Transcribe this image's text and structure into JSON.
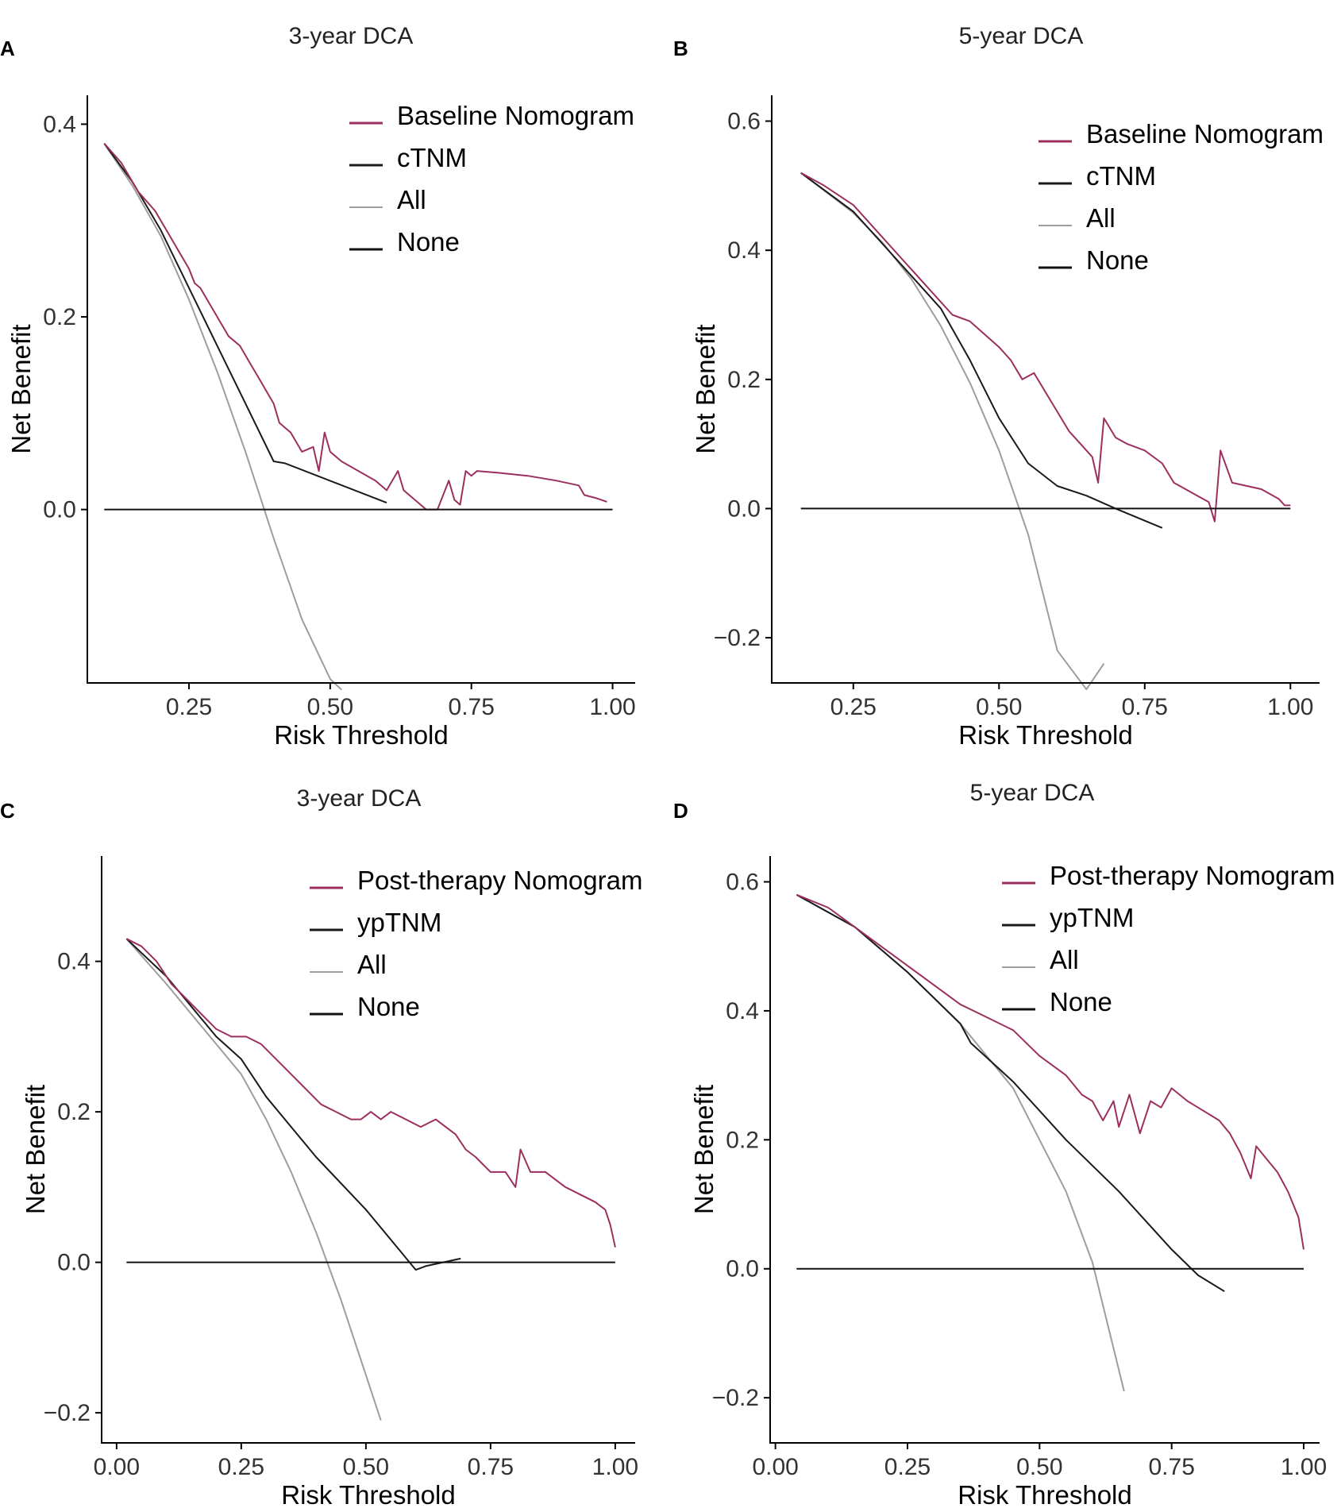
{
  "colors": {
    "nomogram": "#9c2f5f",
    "tnm": "#1a1a1a",
    "all": "#a09c9c",
    "none": "#111111",
    "axis": "#000000"
  },
  "chart_data": [
    {
      "letter": "A",
      "type": "line",
      "title": "3-year DCA",
      "xlabel": "Risk Threshold",
      "ylabel": "Net Benefit",
      "xlim": [
        0.07,
        1.04
      ],
      "ylim": [
        -0.18,
        0.43
      ],
      "xticks": [
        0.25,
        0.5,
        0.75,
        1.0
      ],
      "xtick_labels": [
        "0.25",
        "0.50",
        "0.75",
        "1.00"
      ],
      "yticks": [
        0.0,
        0.2,
        0.4
      ],
      "ytick_labels": [
        "0.0",
        "0.2",
        "0.4"
      ],
      "legend_position": "top-right",
      "series": [
        {
          "name": "Baseline Nomogram",
          "role": "nomogram",
          "x": [
            0.1,
            0.13,
            0.16,
            0.19,
            0.21,
            0.23,
            0.25,
            0.26,
            0.27,
            0.28,
            0.3,
            0.32,
            0.34,
            0.36,
            0.37,
            0.38,
            0.39,
            0.4,
            0.41,
            0.43,
            0.45,
            0.47,
            0.48,
            0.49,
            0.5,
            0.52,
            0.55,
            0.58,
            0.6,
            0.62,
            0.63,
            0.65,
            0.67,
            0.69,
            0.71,
            0.72,
            0.73,
            0.74,
            0.75,
            0.76,
            0.8,
            0.85,
            0.9,
            0.94,
            0.95,
            0.97,
            0.99
          ],
          "y": [
            0.38,
            0.36,
            0.33,
            0.31,
            0.29,
            0.27,
            0.25,
            0.235,
            0.23,
            0.22,
            0.2,
            0.18,
            0.17,
            0.15,
            0.14,
            0.13,
            0.12,
            0.11,
            0.09,
            0.08,
            0.06,
            0.065,
            0.04,
            0.08,
            0.06,
            0.05,
            0.04,
            0.03,
            0.02,
            0.04,
            0.02,
            0.01,
            0.0,
            0.0,
            0.03,
            0.01,
            0.005,
            0.04,
            0.035,
            0.04,
            0.038,
            0.035,
            0.03,
            0.025,
            0.015,
            0.012,
            0.008
          ]
        },
        {
          "name": "cTNM",
          "role": "tnm",
          "x": [
            0.1,
            0.15,
            0.2,
            0.25,
            0.3,
            0.35,
            0.4,
            0.42,
            0.6
          ],
          "y": [
            0.38,
            0.34,
            0.29,
            0.23,
            0.17,
            0.11,
            0.05,
            0.048,
            0.007
          ]
        },
        {
          "name": "All",
          "role": "all",
          "x": [
            0.1,
            0.15,
            0.2,
            0.25,
            0.3,
            0.35,
            0.4,
            0.45,
            0.5,
            0.52
          ],
          "y": [
            0.38,
            0.336,
            0.284,
            0.218,
            0.143,
            0.06,
            -0.03,
            -0.114,
            -0.176,
            -0.187
          ]
        },
        {
          "name": "None",
          "role": "none",
          "x": [
            0.1,
            1.0
          ],
          "y": [
            0.0,
            0.0
          ]
        }
      ]
    },
    {
      "letter": "B",
      "type": "line",
      "title": "5-year DCA",
      "xlabel": "Risk Threshold",
      "ylabel": "Net Benefit",
      "xlim": [
        0.11,
        1.05
      ],
      "ylim": [
        -0.27,
        0.64
      ],
      "xticks": [
        0.25,
        0.5,
        0.75,
        1.0
      ],
      "xtick_labels": [
        "0.25",
        "0.50",
        "0.75",
        "1.00"
      ],
      "yticks": [
        -0.2,
        0.0,
        0.2,
        0.4,
        0.6
      ],
      "ytick_labels": [
        "−0.2",
        "0.0",
        "0.2",
        "0.4",
        "0.6"
      ],
      "legend_position": "top-right",
      "series": [
        {
          "name": "Baseline Nomogram",
          "role": "nomogram",
          "x": [
            0.16,
            0.2,
            0.25,
            0.3,
            0.35,
            0.4,
            0.42,
            0.45,
            0.5,
            0.52,
            0.54,
            0.56,
            0.58,
            0.6,
            0.62,
            0.64,
            0.66,
            0.67,
            0.68,
            0.7,
            0.72,
            0.75,
            0.78,
            0.8,
            0.82,
            0.84,
            0.86,
            0.87,
            0.88,
            0.9,
            0.95,
            0.98,
            0.99,
            1.0
          ],
          "y": [
            0.52,
            0.5,
            0.47,
            0.42,
            0.37,
            0.32,
            0.3,
            0.29,
            0.25,
            0.23,
            0.2,
            0.21,
            0.18,
            0.15,
            0.12,
            0.1,
            0.08,
            0.04,
            0.14,
            0.11,
            0.1,
            0.09,
            0.07,
            0.04,
            0.03,
            0.02,
            0.01,
            -0.02,
            0.09,
            0.04,
            0.03,
            0.015,
            0.005,
            0.005
          ]
        },
        {
          "name": "cTNM",
          "role": "tnm",
          "x": [
            0.16,
            0.25,
            0.3,
            0.35,
            0.4,
            0.45,
            0.5,
            0.55,
            0.6,
            0.65,
            0.7,
            0.78
          ],
          "y": [
            0.52,
            0.46,
            0.41,
            0.36,
            0.31,
            0.23,
            0.14,
            0.07,
            0.035,
            0.02,
            0.0,
            -0.03
          ]
        },
        {
          "name": "All",
          "role": "all",
          "x": [
            0.16,
            0.25,
            0.3,
            0.35,
            0.4,
            0.45,
            0.5,
            0.55,
            0.6,
            0.65,
            0.68
          ],
          "y": [
            0.52,
            0.458,
            0.412,
            0.355,
            0.283,
            0.195,
            0.09,
            -0.04,
            -0.22,
            -0.28,
            -0.24
          ]
        },
        {
          "name": "None",
          "role": "none",
          "x": [
            0.16,
            1.0
          ],
          "y": [
            0.0,
            0.0
          ]
        }
      ]
    },
    {
      "letter": "C",
      "type": "line",
      "title": "3-year DCA",
      "xlabel": "Risk Threshold",
      "ylabel": "Net Benefit",
      "xlim": [
        -0.03,
        1.04
      ],
      "ylim": [
        -0.24,
        0.54
      ],
      "xticks": [
        0.0,
        0.25,
        0.5,
        0.75,
        1.0
      ],
      "xtick_labels": [
        "0.00",
        "0.25",
        "0.50",
        "0.75",
        "1.00"
      ],
      "yticks": [
        -0.2,
        0.0,
        0.2,
        0.4
      ],
      "ytick_labels": [
        "−0.2",
        "0.0",
        "0.2",
        "0.4"
      ],
      "legend_position": "top-right",
      "series": [
        {
          "name": "Post-therapy Nomogram",
          "role": "nomogram",
          "x": [
            0.02,
            0.05,
            0.08,
            0.11,
            0.14,
            0.17,
            0.2,
            0.23,
            0.26,
            0.29,
            0.32,
            0.35,
            0.38,
            0.41,
            0.44,
            0.47,
            0.49,
            0.51,
            0.53,
            0.55,
            0.58,
            0.61,
            0.64,
            0.66,
            0.68,
            0.7,
            0.72,
            0.75,
            0.78,
            0.8,
            0.81,
            0.83,
            0.86,
            0.9,
            0.93,
            0.96,
            0.98,
            0.99,
            1.0
          ],
          "y": [
            0.43,
            0.42,
            0.4,
            0.37,
            0.35,
            0.33,
            0.31,
            0.3,
            0.3,
            0.29,
            0.27,
            0.25,
            0.23,
            0.21,
            0.2,
            0.19,
            0.19,
            0.2,
            0.19,
            0.2,
            0.19,
            0.18,
            0.19,
            0.18,
            0.17,
            0.15,
            0.14,
            0.12,
            0.12,
            0.1,
            0.15,
            0.12,
            0.12,
            0.1,
            0.09,
            0.08,
            0.07,
            0.05,
            0.02
          ]
        },
        {
          "name": "ypTNM",
          "role": "tnm",
          "x": [
            0.02,
            0.1,
            0.2,
            0.25,
            0.3,
            0.4,
            0.5,
            0.6,
            0.62,
            0.69
          ],
          "y": [
            0.43,
            0.38,
            0.3,
            0.27,
            0.22,
            0.14,
            0.07,
            -0.01,
            -0.005,
            0.005
          ]
        },
        {
          "name": "All",
          "role": "all",
          "x": [
            0.02,
            0.1,
            0.2,
            0.25,
            0.3,
            0.35,
            0.4,
            0.45,
            0.5,
            0.53
          ],
          "y": [
            0.43,
            0.37,
            0.29,
            0.25,
            0.19,
            0.12,
            0.04,
            -0.05,
            -0.15,
            -0.21
          ]
        },
        {
          "name": "None",
          "role": "none",
          "x": [
            0.02,
            1.0
          ],
          "y": [
            0.0,
            0.0
          ]
        }
      ]
    },
    {
      "letter": "D",
      "type": "line",
      "title": "5-year DCA",
      "xlabel": "Risk Threshold",
      "ylabel": "Net Benefit",
      "xlim": [
        -0.01,
        1.03
      ],
      "ylim": [
        -0.27,
        0.64
      ],
      "xticks": [
        0.0,
        0.25,
        0.5,
        0.75,
        1.0
      ],
      "xtick_labels": [
        "0.00",
        "0.25",
        "0.50",
        "0.75",
        "1.00"
      ],
      "yticks": [
        -0.2,
        0.0,
        0.2,
        0.4,
        0.6
      ],
      "ytick_labels": [
        "−0.2",
        "0.0",
        "0.2",
        "0.4",
        "0.6"
      ],
      "legend_position": "top-right",
      "series": [
        {
          "name": "Post-therapy Nomogram",
          "role": "nomogram",
          "x": [
            0.04,
            0.1,
            0.15,
            0.2,
            0.25,
            0.3,
            0.35,
            0.4,
            0.45,
            0.5,
            0.55,
            0.58,
            0.6,
            0.62,
            0.64,
            0.65,
            0.67,
            0.69,
            0.71,
            0.73,
            0.75,
            0.78,
            0.8,
            0.82,
            0.84,
            0.86,
            0.88,
            0.9,
            0.91,
            0.93,
            0.95,
            0.97,
            0.99,
            1.0
          ],
          "y": [
            0.58,
            0.56,
            0.53,
            0.5,
            0.47,
            0.44,
            0.41,
            0.39,
            0.37,
            0.33,
            0.3,
            0.27,
            0.26,
            0.23,
            0.26,
            0.22,
            0.27,
            0.21,
            0.26,
            0.25,
            0.28,
            0.26,
            0.25,
            0.24,
            0.23,
            0.21,
            0.18,
            0.14,
            0.19,
            0.17,
            0.15,
            0.12,
            0.08,
            0.03
          ]
        },
        {
          "name": "ypTNM",
          "role": "tnm",
          "x": [
            0.04,
            0.15,
            0.25,
            0.35,
            0.37,
            0.45,
            0.55,
            0.65,
            0.75,
            0.8,
            0.85
          ],
          "y": [
            0.58,
            0.53,
            0.46,
            0.38,
            0.35,
            0.29,
            0.2,
            0.12,
            0.03,
            -0.01,
            -0.035
          ]
        },
        {
          "name": "All",
          "role": "all",
          "x": [
            0.04,
            0.15,
            0.25,
            0.35,
            0.45,
            0.5,
            0.55,
            0.6,
            0.66
          ],
          "y": [
            0.58,
            0.53,
            0.46,
            0.38,
            0.28,
            0.2,
            0.12,
            0.01,
            -0.19
          ]
        },
        {
          "name": "None",
          "role": "none",
          "x": [
            0.04,
            1.0
          ],
          "y": [
            0.0,
            0.0
          ]
        }
      ]
    }
  ]
}
